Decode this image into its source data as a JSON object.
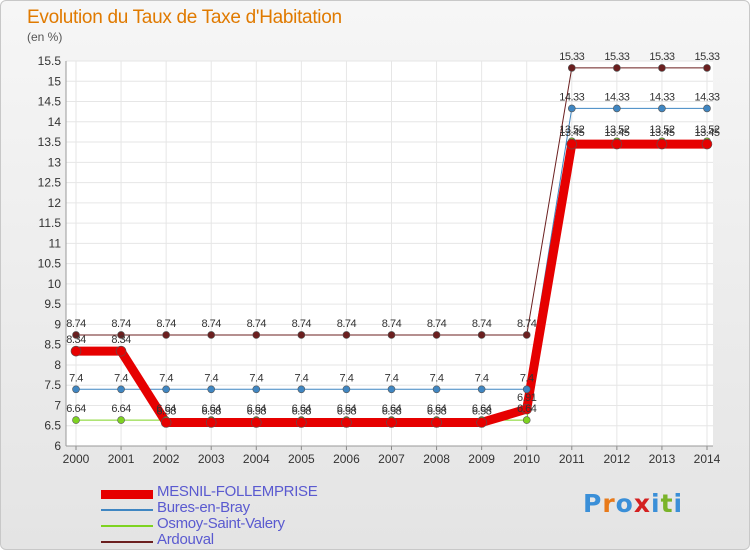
{
  "title": "Evolution du Taux de Taxe d'Habitation",
  "unit_label": "(en %)",
  "logo_text": "Proxiti",
  "chart_data": {
    "type": "line",
    "categories": [
      "2000",
      "2001",
      "2002",
      "2003",
      "2004",
      "2005",
      "2006",
      "2007",
      "2008",
      "2009",
      "2010",
      "2011",
      "2012",
      "2013",
      "2014"
    ],
    "ylim": [
      6,
      15.5
    ],
    "yticks": [
      6,
      6.5,
      7,
      7.5,
      8,
      8.5,
      9,
      9.5,
      10,
      10.5,
      11,
      11.5,
      12,
      12.5,
      13,
      13.5,
      14,
      14.5,
      15,
      15.5
    ],
    "ytick_labels": [
      "6",
      "6.5",
      "7",
      "7.5",
      "8",
      "8.5",
      "9",
      "9.5",
      "10",
      "10.5",
      "11",
      "11.5",
      "12",
      "12.5",
      "13",
      "13.5",
      "14",
      "14.5",
      "15",
      "15.5"
    ],
    "grid": true,
    "legend_position": "bottom-left",
    "series": [
      {
        "name": "Ardouval",
        "color": "#6b1f1f",
        "width": 1,
        "marker": 3.5,
        "values": [
          8.74,
          8.74,
          8.74,
          8.74,
          8.74,
          8.74,
          8.74,
          8.74,
          8.74,
          8.74,
          8.74,
          15.33,
          15.33,
          15.33,
          15.33
        ],
        "labels": [
          "8.74",
          "8.74",
          "8.74",
          "8.74",
          "8.74",
          "8.74",
          "8.74",
          "8.74",
          "8.74",
          "8.74",
          "8.74",
          "15.33",
          "15.33",
          "15.33",
          "15.33"
        ]
      },
      {
        "name": "Bures-en-Bray",
        "color": "#3f86c2",
        "width": 1,
        "marker": 3.5,
        "values": [
          7.4,
          7.4,
          7.4,
          7.4,
          7.4,
          7.4,
          7.4,
          7.4,
          7.4,
          7.4,
          7.4,
          14.33,
          14.33,
          14.33,
          14.33
        ],
        "labels": [
          "7.4",
          "7.4",
          "7.4",
          "7.4",
          "7.4",
          "7.4",
          "7.4",
          "7.4",
          "7.4",
          "7.4",
          "7.4",
          "14.33",
          "14.33",
          "14.33",
          "14.33"
        ]
      },
      {
        "name": "Osmoy-Saint-Valery",
        "color": "#7ed321",
        "width": 1,
        "marker": 3.5,
        "values": [
          6.64,
          6.64,
          6.64,
          6.64,
          6.64,
          6.64,
          6.64,
          6.64,
          6.64,
          6.64,
          6.64,
          13.52,
          13.52,
          13.52,
          13.52
        ],
        "labels": [
          "6.64",
          "6.64",
          "6.64",
          "6.64",
          "6.64",
          "6.64",
          "6.64",
          "6.64",
          "6.64",
          "6.64",
          "6.64",
          "13.52",
          "13.52",
          "13.52",
          "13.52"
        ]
      },
      {
        "name": "MESNIL-FOLLEMPRISE",
        "color": "#e60000",
        "width": 9,
        "marker": 5,
        "values": [
          8.34,
          8.34,
          6.58,
          6.58,
          6.58,
          6.58,
          6.58,
          6.58,
          6.58,
          6.58,
          6.91,
          13.45,
          13.45,
          13.45,
          13.45
        ],
        "labels": [
          "8.34",
          "8.34",
          "6.58",
          "6.58",
          "6.58",
          "6.58",
          "6.58",
          "6.58",
          "6.58",
          "6.58",
          "6.91",
          "13.45",
          "13.45",
          "13.45",
          "13.45"
        ]
      }
    ]
  },
  "legend": [
    {
      "name": "MESNIL-FOLLEMPRISE",
      "color": "#e60000"
    },
    {
      "name": "Bures-en-Bray",
      "color": "#3f86c2"
    },
    {
      "name": "Osmoy-Saint-Valery",
      "color": "#7ed321"
    },
    {
      "name": "Ardouval",
      "color": "#6b1f1f"
    }
  ]
}
